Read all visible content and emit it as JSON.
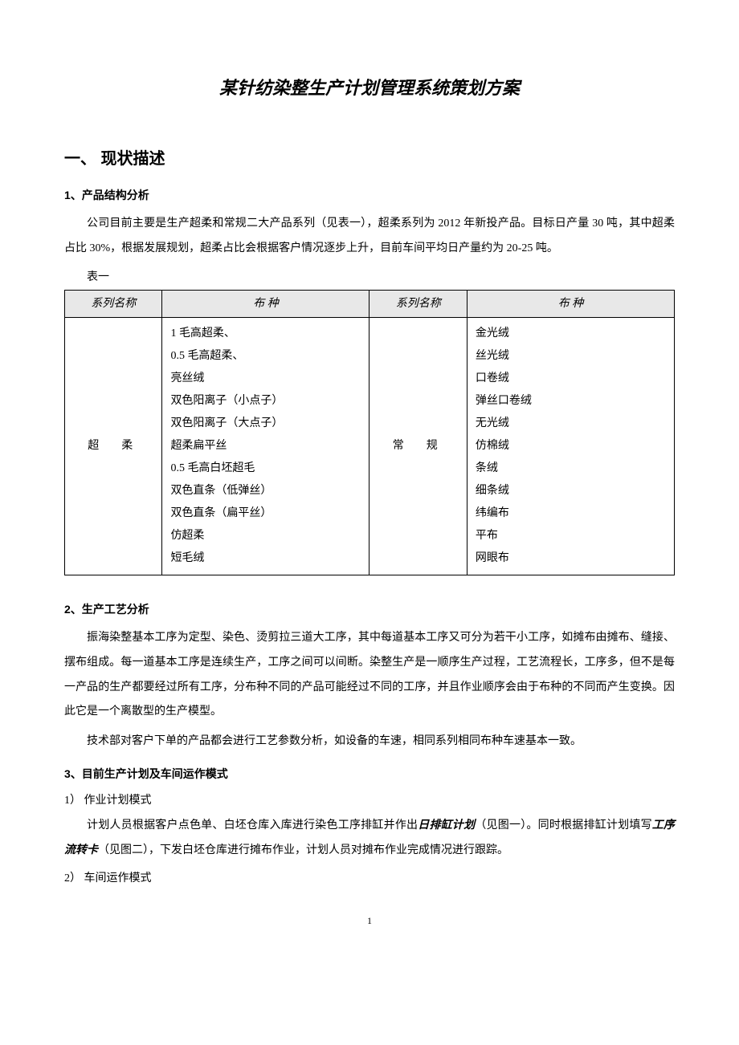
{
  "title": "某针纺染整生产计划管理系统策划方案",
  "section1": {
    "heading": "一、  现状描述",
    "sub1": {
      "heading": "1、产品结构分析",
      "para1": "公司目前主要是生产超柔和常规二大产品系列（见表一），超柔系列为 2012 年新投产品。目标日产量 30 吨，其中超柔占比 30%，根据发展规划，超柔占比会根据客户情况逐步上升，目前车间平均日产量约为 20-25 吨。",
      "table_label": "表一",
      "table": {
        "headers": [
          "系列名称",
          "布          种",
          "系列名称",
          "布          种"
        ],
        "series1_name": "超柔",
        "series1_items": [
          "1 毛高超柔、",
          "0.5 毛高超柔、",
          "亮丝绒",
          "双色阳离子（小点子）",
          "双色阳离子（大点子）",
          "超柔扁平丝",
          "0.5 毛高白坯超毛",
          "双色直条（低弹丝）",
          "双色直条（扁平丝）",
          "仿超柔",
          "短毛绒"
        ],
        "series2_name": "常规",
        "series2_items": [
          "金光绒",
          "丝光绒",
          "口卷绒",
          "弹丝口卷绒",
          "无光绒",
          "仿棉绒",
          "条绒",
          "细条绒",
          "纬编布",
          "平布",
          "网眼布"
        ]
      }
    },
    "sub2": {
      "heading": "2、生产工艺分析",
      "para1": "振海染整基本工序为定型、染色、烫剪拉三道大工序，其中每道基本工序又可分为若干小工序，如摊布由摊布、缝接、摆布组成。每一道基本工序是连续生产，工序之间可以间断。染整生产是一顺序生产过程，工艺流程长，工序多，但不是每一产品的生产都要经过所有工序，分布种不同的产品可能经过不同的工序，并且作业顺序会由于布种的不同而产生变换。因此它是一个离散型的生产模型。",
      "para2": "技术部对客户下单的产品都会进行工艺参数分析，如设备的车速，相同系列相同布种车速基本一致。"
    },
    "sub3": {
      "heading": "3、目前生产计划及车间运作模式",
      "item1_label": "1） 作业计划模式",
      "item1_text_a": "计划人员根据客户点色单、白坯仓库入库进行染色工序排缸并作出",
      "item1_emphasis1": "日排缸计划",
      "item1_text_b": "（见图一）。同时根据排缸计划填写",
      "item1_emphasis2": "工序流转卡",
      "item1_text_c": "（见图二），下发白坯仓库进行摊布作业，计划人员对摊布作业完成情况进行跟踪。",
      "item2_label": "2） 车间运作模式"
    }
  },
  "page_number": "1"
}
